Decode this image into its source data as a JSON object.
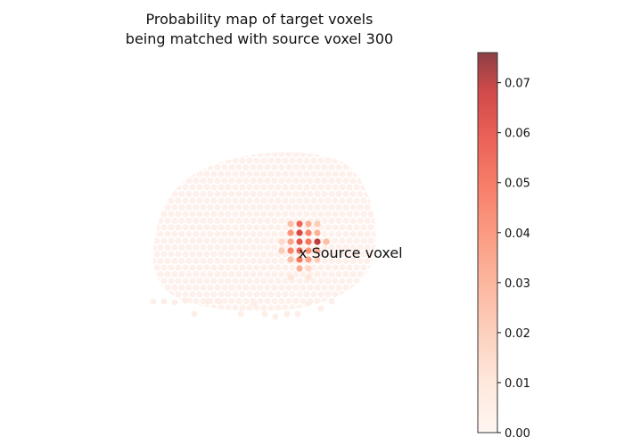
{
  "chart_data": {
    "type": "scatter",
    "title": [
      "Probability map of target voxels",
      "being matched with source voxel 300"
    ],
    "annotation": "x Source voxel",
    "colormap": "Reds",
    "colorbar": {
      "range": [
        0.0,
        0.076
      ],
      "ticks": [
        0.0,
        0.01,
        0.02,
        0.03,
        0.04,
        0.05,
        0.06,
        0.07
      ],
      "tick_labels": [
        "0.00",
        "0.01",
        "0.02",
        "0.03",
        "0.04",
        "0.05",
        "0.06",
        "0.07"
      ]
    },
    "axes_visible": false,
    "grid": false,
    "high_probability_points": [
      {
        "col": 0,
        "row": 0,
        "value": 0.025
      },
      {
        "col": 1,
        "row": 0,
        "value": 0.055
      },
      {
        "col": 2,
        "row": 0,
        "value": 0.03
      },
      {
        "col": 3,
        "row": 0,
        "value": 0.02
      },
      {
        "col": 0,
        "row": 1,
        "value": 0.04
      },
      {
        "col": 1,
        "row": 1,
        "value": 0.065
      },
      {
        "col": 2,
        "row": 1,
        "value": 0.045
      },
      {
        "col": 3,
        "row": 1,
        "value": 0.03
      },
      {
        "col": -1,
        "row": 2,
        "value": 0.015
      },
      {
        "col": 0,
        "row": 2,
        "value": 0.035
      },
      {
        "col": 1,
        "row": 2,
        "value": 0.06
      },
      {
        "col": 2,
        "row": 2,
        "value": 0.05
      },
      {
        "col": 3,
        "row": 2,
        "value": 0.07
      },
      {
        "col": 4,
        "row": 2,
        "value": 0.025
      },
      {
        "col": -1,
        "row": 3,
        "value": 0.02
      },
      {
        "col": 0,
        "row": 3,
        "value": 0.045
      },
      {
        "col": 1,
        "row": 3,
        "value": 0.055
      },
      {
        "col": 2,
        "row": 3,
        "value": 0.04
      },
      {
        "col": 3,
        "row": 3,
        "value": 0.03
      },
      {
        "col": 0,
        "row": 4,
        "value": 0.025
      },
      {
        "col": 1,
        "row": 4,
        "value": 0.05
      },
      {
        "col": 2,
        "row": 4,
        "value": 0.035
      },
      {
        "col": 3,
        "row": 4,
        "value": 0.02
      },
      {
        "col": 1,
        "row": 5,
        "value": 0.03
      },
      {
        "col": 2,
        "row": 5,
        "value": 0.015
      },
      {
        "col": 0,
        "row": 6,
        "value": 0.01
      },
      {
        "col": 2,
        "row": 6,
        "value": 0.01
      }
    ]
  }
}
